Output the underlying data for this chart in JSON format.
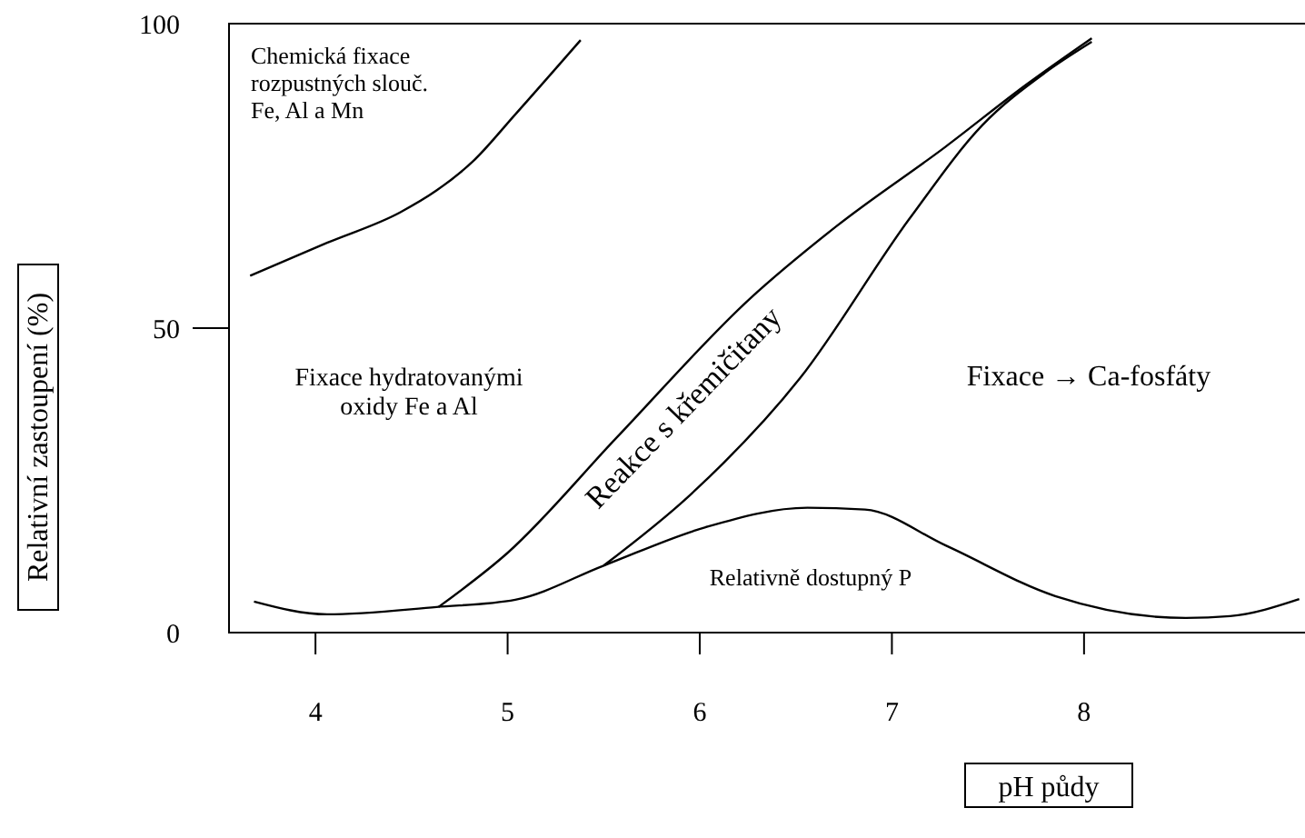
{
  "chart_data": {
    "type": "line",
    "xlabel": "pH půdy",
    "ylabel": "Relativní zastoupení (%)",
    "xlim": [
      3.55,
      9.15
    ],
    "ylim": [
      0,
      100
    ],
    "xticks": [
      4,
      5,
      6,
      7,
      8
    ],
    "yticks": [
      0,
      50,
      100
    ],
    "grid": false,
    "marker": "none",
    "line_style": "solid",
    "series": [
      {
        "color": "#000000",
        "x": [
          3.66,
          4.06,
          4.44,
          4.63,
          4.82,
          5.04,
          5.38
        ],
        "values": [
          58.6,
          64,
          69,
          72.6,
          77.4,
          85.1,
          97.3
        ]
      },
      {
        "color": "#000000",
        "x": [
          4.64,
          5.0,
          5.57,
          6.26,
          6.71,
          7.28,
          7.7,
          8.04
        ],
        "values": [
          4.2,
          13.1,
          32.1,
          54.8,
          66.7,
          79.8,
          90,
          97.6
        ]
      },
      {
        "color": "#000000",
        "x": [
          5.5,
          5.95,
          6.52,
          7.09,
          7.47,
          7.8,
          8.04
        ],
        "values": [
          11,
          22.6,
          41.7,
          67.9,
          83.3,
          92,
          97
        ]
      },
      {
        "color": "#000000",
        "x": [
          3.68,
          4.06,
          4.63,
          5.04,
          5.5,
          6.03,
          6.56,
          6.86,
          7.28,
          7.85,
          8.53,
          8.76,
          9.12
        ],
        "values": [
          5.1,
          3.0,
          4.2,
          5.4,
          11,
          17.3,
          20.5,
          20.2,
          14.3,
          6,
          2.4,
          2.7,
          5.5
        ]
      }
    ],
    "annotations": [
      "Chemická fixace\nrozpustných slouč.\nFe, Al a Mn",
      "Fixace hydratovanými\noxidy Fe a Al",
      "Reakce s křemičitany",
      "Fixace → Ca-fosfáty",
      "Relativně dostupný P"
    ]
  }
}
